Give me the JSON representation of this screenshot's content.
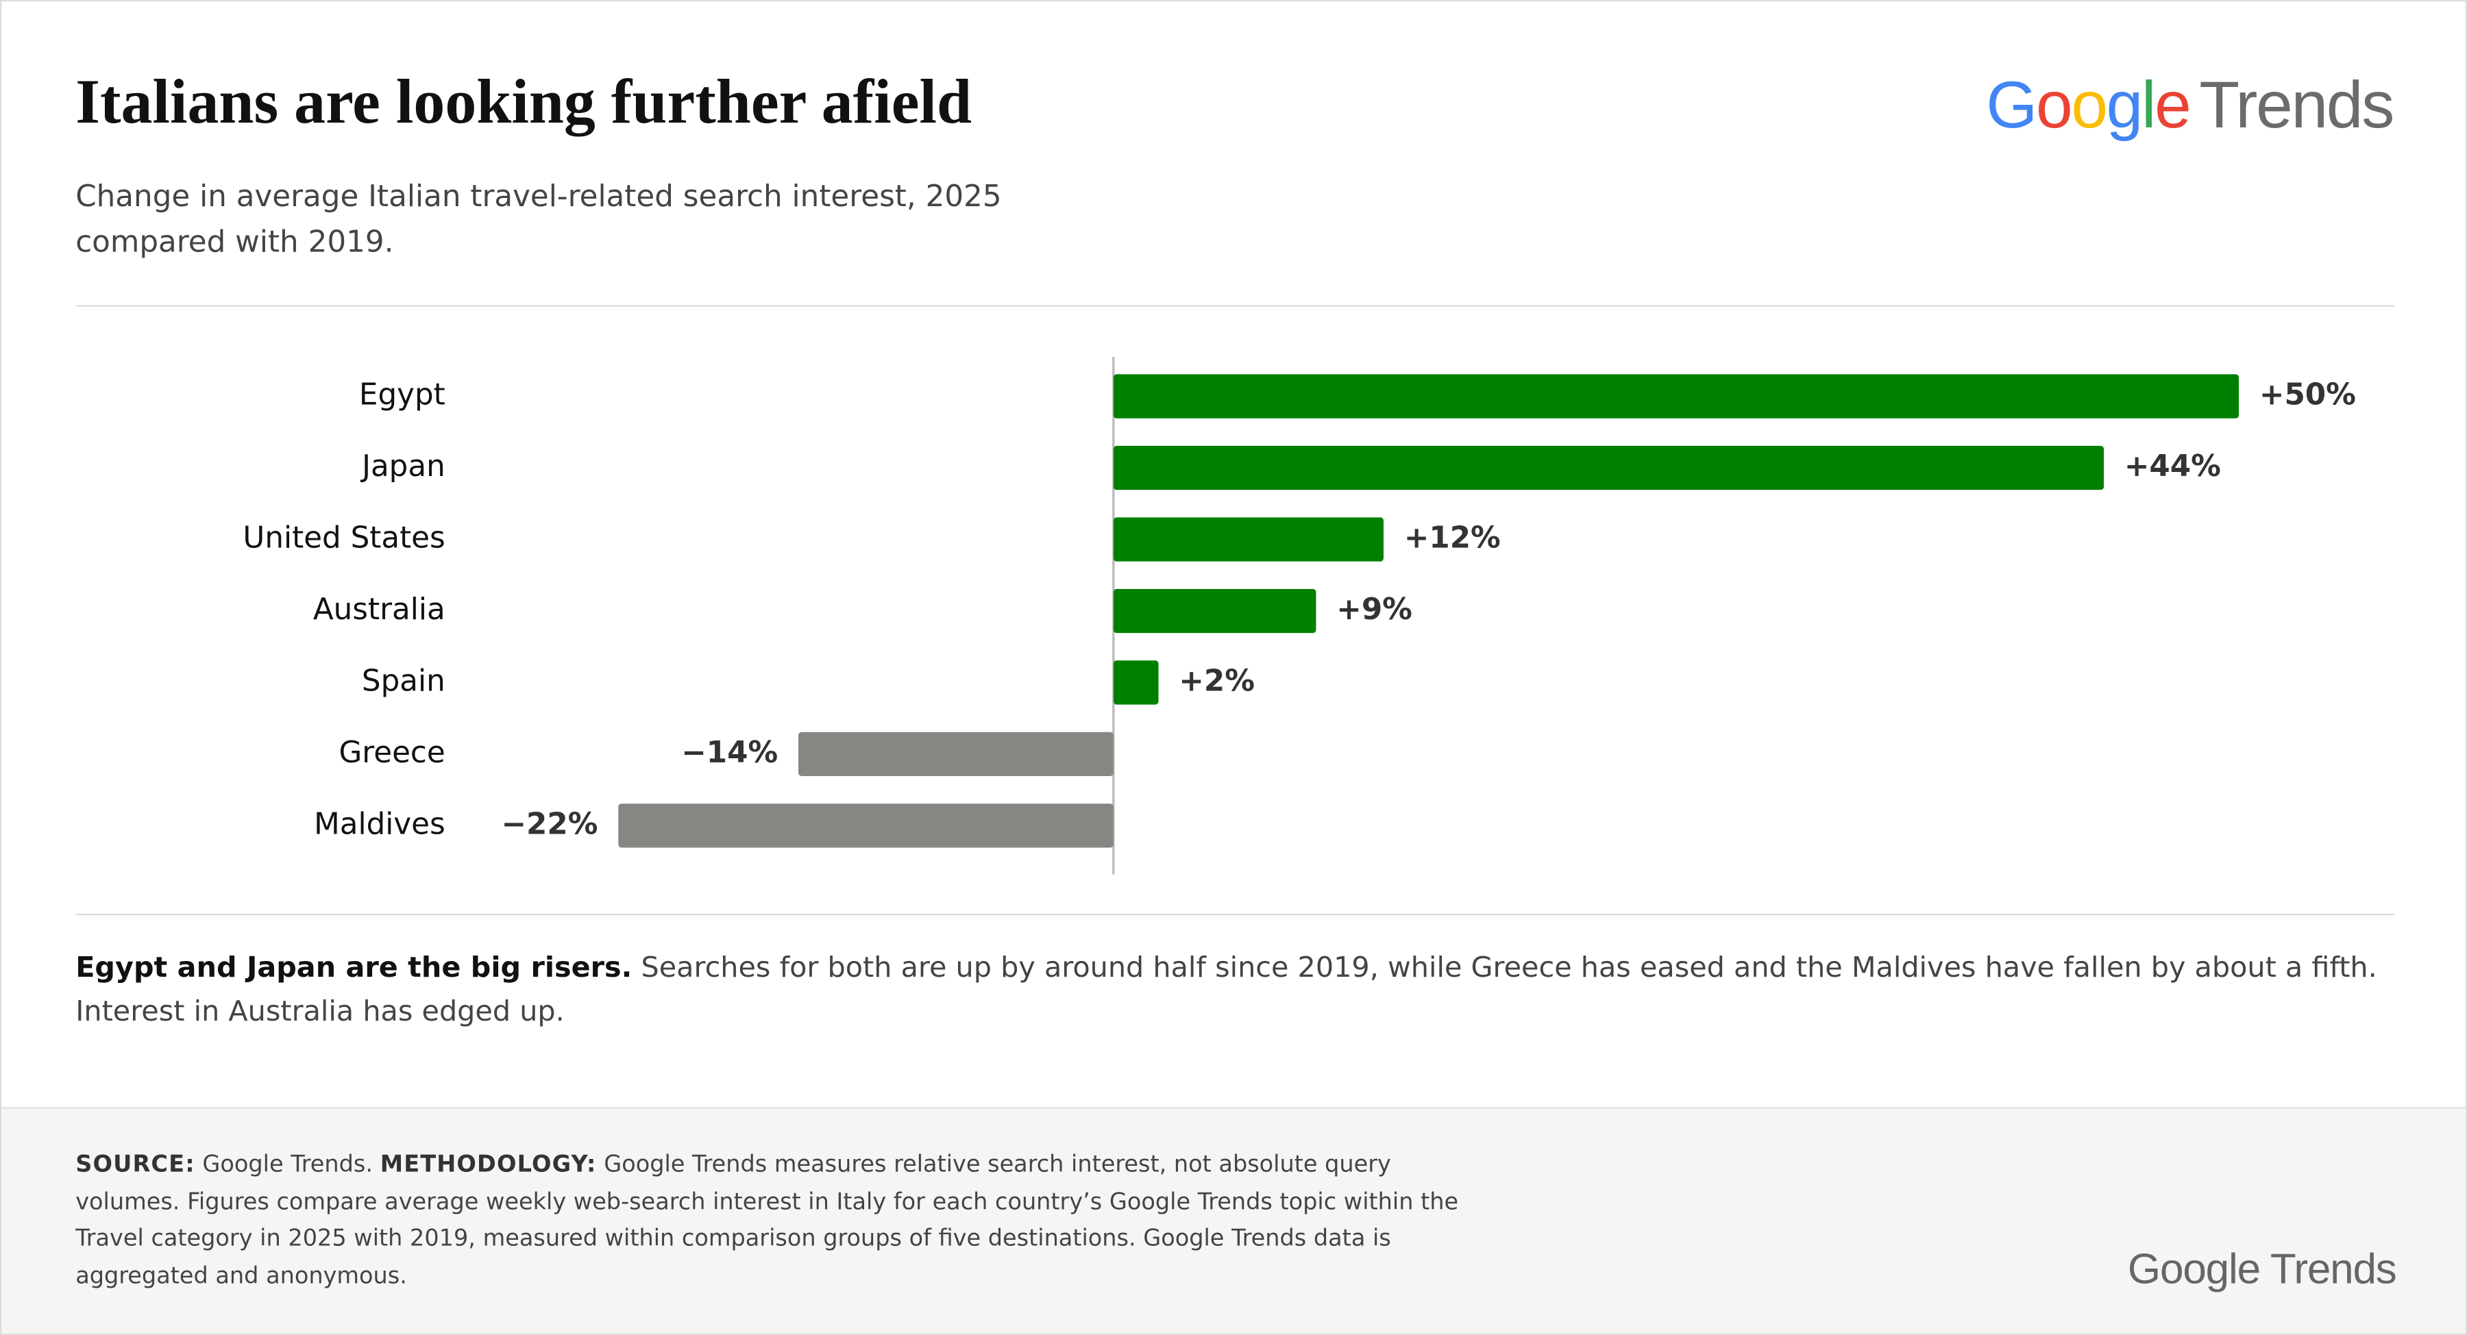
{
  "header": {
    "title": "Italians are looking further afield",
    "subtitle": "Change in average Italian travel-related search interest, 2025 compared with 2019.",
    "logo": {
      "brand": "Google",
      "product": "Trends",
      "brand_colors": [
        "#4285f4",
        "#ea4335",
        "#fbbc05",
        "#4285f4",
        "#34a853",
        "#ea4335"
      ]
    }
  },
  "chart_data": {
    "type": "hbar",
    "categories": [
      "Egypt",
      "Japan",
      "United States",
      "Australia",
      "Spain",
      "Greece",
      "Maldives"
    ],
    "values": [
      50,
      44,
      12,
      9,
      2,
      -14,
      -22
    ],
    "value_labels": [
      "+50%",
      "+44%",
      "+12%",
      "+9%",
      "+2%",
      "−14%",
      "−22%"
    ],
    "colors": [
      "#008000",
      "#008000",
      "#008000",
      "#008000",
      "#008000",
      "#878682",
      "#878682"
    ],
    "xlim": [
      -22,
      50
    ]
  },
  "note": {
    "lead": "Egypt and Japan are the big risers.",
    "text": "Searches for both are up by around half since 2019, while Greece has eased and the Maldives have fallen by about a fifth. Interest in Australia has edged up."
  },
  "footer": {
    "source_label": "SOURCE:",
    "source": "Google Trends.",
    "methodology_label": "METHODOLOGY:",
    "methodology": "Google Trends measures relative search interest, not absolute query volumes. Figures compare average weekly web-search interest in Italy for each country’s Google Trends topic within the Travel category in 2025 with 2019, measured within comparison groups of five destinations. Google Trends data is aggregated and anonymous.",
    "logo": {
      "brand": "Google",
      "product": "Trends"
    }
  }
}
